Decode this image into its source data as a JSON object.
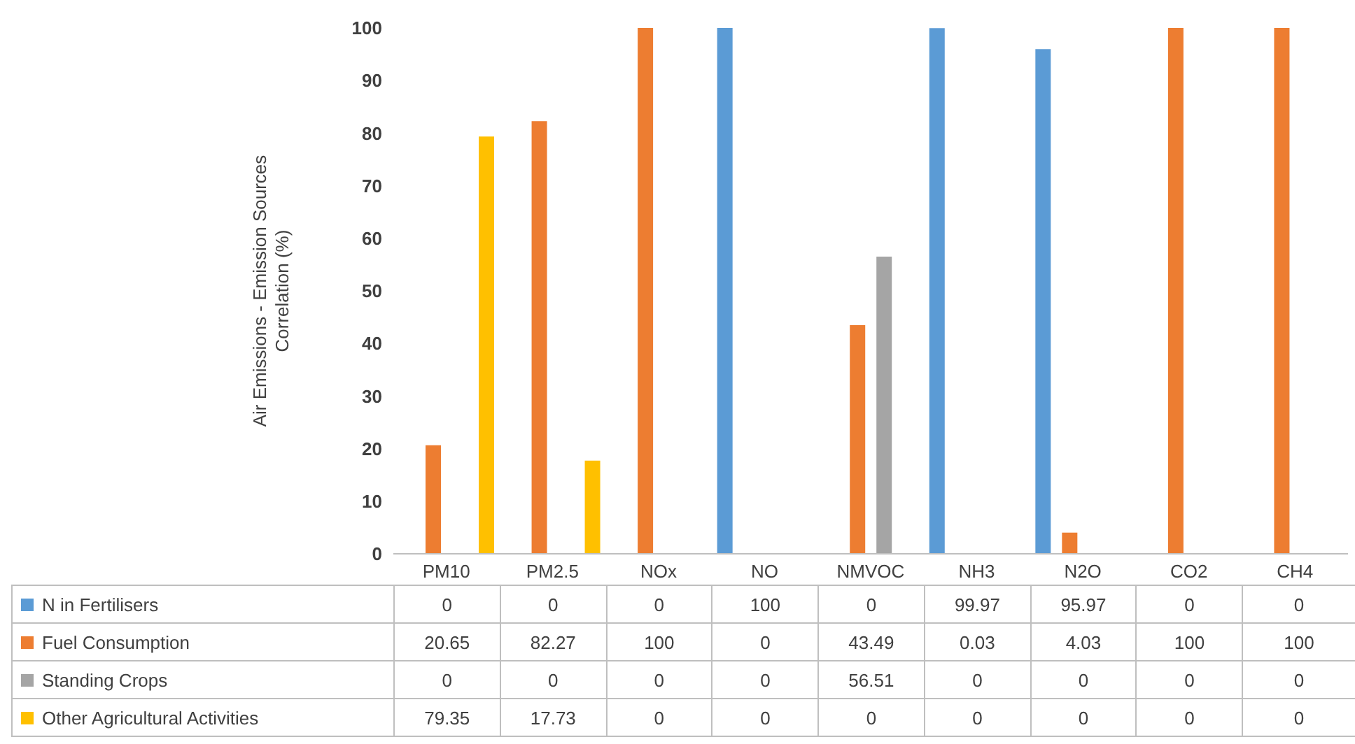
{
  "chart_data": {
    "type": "bar",
    "ylabel": "Air Emissions - Emission Sources\nCorrelation (%)",
    "categories": [
      "PM10",
      "PM2.5",
      "NOx",
      "NO",
      "NMVOC",
      "NH3",
      "N2O",
      "CO2",
      "CH4"
    ],
    "series": [
      {
        "name": "N in Fertilisers",
        "color": "#5b9bd5",
        "values": [
          0,
          0,
          0,
          100,
          0,
          99.97,
          95.97,
          0,
          0
        ]
      },
      {
        "name": "Fuel Consumption",
        "color": "#ed7d31",
        "values": [
          20.65,
          82.27,
          100,
          0,
          43.49,
          0.03,
          4.03,
          100,
          100
        ]
      },
      {
        "name": "Standing Crops",
        "color": "#a5a5a5",
        "values": [
          0,
          0,
          0,
          0,
          56.51,
          0,
          0,
          0,
          0
        ]
      },
      {
        "name": "Other Agricultural Activities",
        "color": "#ffc000",
        "values": [
          79.35,
          17.73,
          0,
          0,
          0,
          0,
          0,
          0,
          0
        ]
      }
    ],
    "ylim": [
      0,
      100
    ],
    "yticks": [
      0,
      10,
      20,
      30,
      40,
      50,
      60,
      70,
      80,
      90,
      100
    ],
    "data_labels": true,
    "legend": "bottom"
  }
}
